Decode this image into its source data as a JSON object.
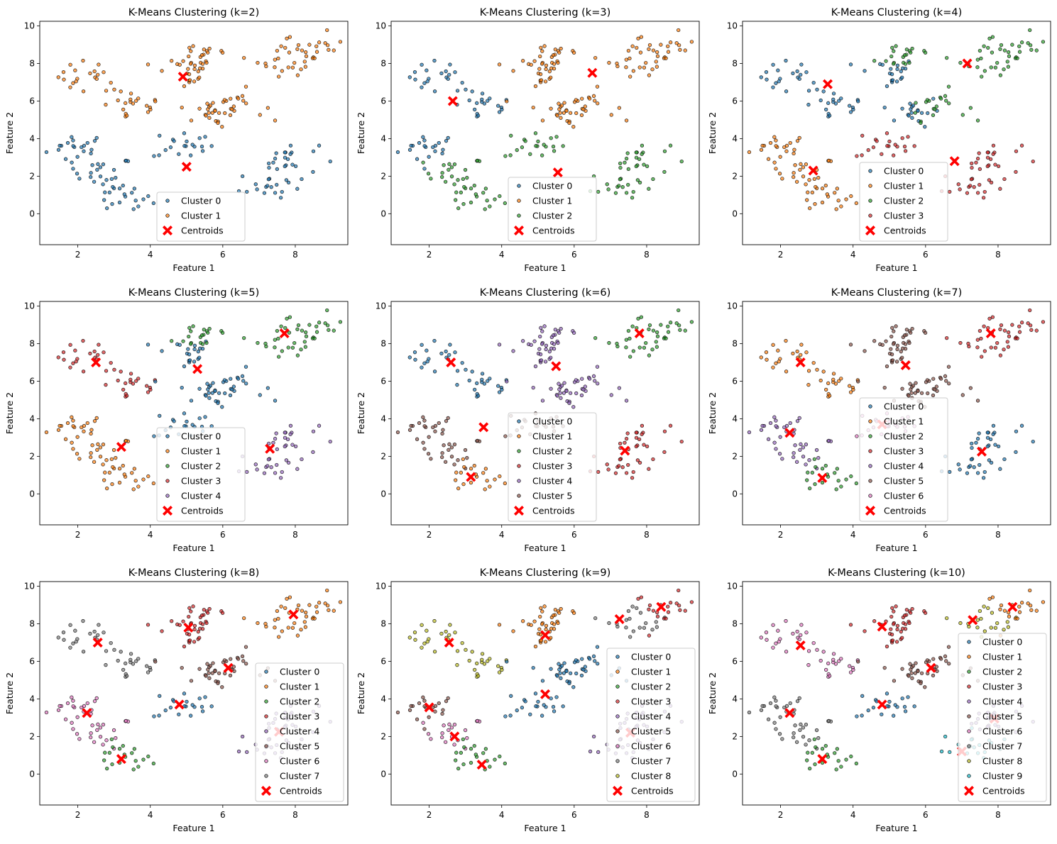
{
  "figure": {
    "xlabel": "Feature 1",
    "ylabel": "Feature 2",
    "xticks": [
      "2",
      "4",
      "6",
      "8"
    ],
    "yticks": [
      "0",
      "2",
      "4",
      "6",
      "8",
      "10"
    ],
    "xlim": [
      0.95,
      9.45
    ],
    "ylim": [
      -1.65,
      10.25
    ],
    "palette": [
      "#1f77b4",
      "#ff7f0e",
      "#2ca02c",
      "#d62728",
      "#9467bd",
      "#8c564b",
      "#e377c2",
      "#7f7f7f",
      "#bcbd22",
      "#17becf"
    ],
    "centroid_color": "#ff0000",
    "centroids_label": "Centroids",
    "blob_centers": [
      [
        2.0,
        3.5
      ],
      [
        2.3,
        7.3
      ],
      [
        2.7,
        2.2
      ],
      [
        3.2,
        0.8
      ],
      [
        3.5,
        5.7
      ],
      [
        4.9,
        3.7
      ],
      [
        4.9,
        7.5
      ],
      [
        5.5,
        8.5
      ],
      [
        5.6,
        5.5
      ],
      [
        6.3,
        5.8
      ],
      [
        7.3,
        1.5
      ],
      [
        7.8,
        2.9
      ],
      [
        7.8,
        8.2
      ],
      [
        8.5,
        8.8
      ]
    ]
  },
  "chart_data": [
    {
      "type": "scatter",
      "k": 2,
      "title": "K-Means Clustering (k=2)",
      "legend": [
        "Cluster 0",
        "Cluster 1"
      ],
      "legend_position": "lower center",
      "centroids": [
        [
          5.0,
          2.5
        ],
        [
          4.9,
          7.3
        ]
      ],
      "blob_labels": [
        0,
        1,
        0,
        0,
        1,
        0,
        1,
        1,
        1,
        1,
        0,
        0,
        1,
        1
      ]
    },
    {
      "type": "scatter",
      "k": 3,
      "title": "K-Means Clustering (k=3)",
      "legend": [
        "Cluster 0",
        "Cluster 1",
        "Cluster 2"
      ],
      "legend_position": "lower center",
      "centroids": [
        [
          2.65,
          6.0
        ],
        [
          6.5,
          7.5
        ],
        [
          5.55,
          2.2
        ]
      ],
      "blob_labels": [
        0,
        0,
        2,
        2,
        0,
        2,
        1,
        1,
        1,
        1,
        2,
        2,
        1,
        1
      ]
    },
    {
      "type": "scatter",
      "k": 4,
      "title": "K-Means Clustering (k=4)",
      "legend": [
        "Cluster 0",
        "Cluster 1",
        "Cluster 2",
        "Cluster 3"
      ],
      "legend_position": "lower center",
      "centroids": [
        [
          3.3,
          6.9
        ],
        [
          2.9,
          2.3
        ],
        [
          7.15,
          8.0
        ],
        [
          6.8,
          2.8
        ]
      ],
      "blob_labels": [
        1,
        0,
        1,
        1,
        0,
        3,
        0,
        2,
        0,
        2,
        3,
        3,
        2,
        2
      ]
    },
    {
      "type": "scatter",
      "k": 5,
      "title": "K-Means Clustering (k=5)",
      "legend": [
        "Cluster 0",
        "Cluster 1",
        "Cluster 2",
        "Cluster 3",
        "Cluster 4"
      ],
      "legend_position": "lower center",
      "centroids": [
        [
          5.3,
          6.65
        ],
        [
          3.2,
          2.5
        ],
        [
          7.7,
          8.55
        ],
        [
          2.5,
          7.0
        ],
        [
          7.3,
          2.4
        ]
      ],
      "blob_labels": [
        1,
        3,
        1,
        1,
        3,
        0,
        0,
        2,
        0,
        0,
        4,
        4,
        2,
        2
      ]
    },
    {
      "type": "scatter",
      "k": 6,
      "title": "K-Means Clustering (k=6)",
      "legend": [
        "Cluster 0",
        "Cluster 1",
        "Cluster 2",
        "Cluster 3",
        "Cluster 4",
        "Cluster 5"
      ],
      "legend_position": "lower center",
      "centroids": [
        [
          2.6,
          7.0
        ],
        [
          3.15,
          0.9
        ],
        [
          7.8,
          8.55
        ],
        [
          7.4,
          2.3
        ],
        [
          5.5,
          6.8
        ],
        [
          3.5,
          3.55
        ]
      ],
      "blob_labels": [
        5,
        0,
        5,
        1,
        0,
        5,
        4,
        4,
        4,
        4,
        3,
        3,
        2,
        2
      ]
    },
    {
      "type": "scatter",
      "k": 7,
      "title": "K-Means Clustering (k=7)",
      "legend": [
        "Cluster 0",
        "Cluster 1",
        "Cluster 2",
        "Cluster 3",
        "Cluster 4",
        "Cluster 5",
        "Cluster 6"
      ],
      "legend_position": "lower center",
      "centroids": [
        [
          7.55,
          2.25
        ],
        [
          2.55,
          7.0
        ],
        [
          3.15,
          0.85
        ],
        [
          7.8,
          8.55
        ],
        [
          2.25,
          3.25
        ],
        [
          5.45,
          6.85
        ],
        [
          4.8,
          3.7
        ]
      ],
      "blob_labels": [
        4,
        1,
        4,
        2,
        1,
        6,
        5,
        5,
        5,
        5,
        0,
        0,
        3,
        3
      ]
    },
    {
      "type": "scatter",
      "k": 8,
      "title": "K-Means Clustering (k=8)",
      "legend": [
        "Cluster 0",
        "Cluster 1",
        "Cluster 2",
        "Cluster 3",
        "Cluster 4",
        "Cluster 5",
        "Cluster 6",
        "Cluster 7"
      ],
      "legend_position": "lower right",
      "centroids": [
        [
          4.8,
          3.7
        ],
        [
          7.95,
          8.5
        ],
        [
          3.2,
          0.8
        ],
        [
          5.05,
          7.8
        ],
        [
          7.55,
          2.25
        ],
        [
          6.15,
          5.65
        ],
        [
          2.25,
          3.25
        ],
        [
          2.55,
          7.0
        ]
      ],
      "blob_labels": [
        6,
        7,
        6,
        2,
        7,
        0,
        3,
        3,
        5,
        5,
        4,
        4,
        1,
        1
      ]
    },
    {
      "type": "scatter",
      "k": 9,
      "title": "K-Means Clustering (k=9)",
      "legend": [
        "Cluster 0",
        "Cluster 1",
        "Cluster 2",
        "Cluster 3",
        "Cluster 4",
        "Cluster 5",
        "Cluster 6",
        "Cluster 7",
        "Cluster 8"
      ],
      "legend_position": "lower right",
      "centroids": [
        [
          5.2,
          4.25
        ],
        [
          5.2,
          7.4
        ],
        [
          3.45,
          0.5
        ],
        [
          8.4,
          8.9
        ],
        [
          7.55,
          2.2
        ],
        [
          2.0,
          3.55
        ],
        [
          2.7,
          2.0
        ],
        [
          7.25,
          8.25
        ],
        [
          2.55,
          7.0
        ]
      ],
      "blob_labels": [
        5,
        8,
        6,
        2,
        8,
        0,
        1,
        1,
        0,
        0,
        4,
        4,
        7,
        3
      ]
    },
    {
      "type": "scatter",
      "k": 10,
      "title": "K-Means Clustering (k=10)",
      "legend": [
        "Cluster 0",
        "Cluster 1",
        "Cluster 2",
        "Cluster 3",
        "Cluster 4",
        "Cluster 5",
        "Cluster 6",
        "Cluster 7",
        "Cluster 8",
        "Cluster 9"
      ],
      "legend_position": "lower right",
      "centroids": [
        [
          4.8,
          3.7
        ],
        [
          8.4,
          8.9
        ],
        [
          3.15,
          0.8
        ],
        [
          4.8,
          7.85
        ],
        [
          7.9,
          2.95
        ],
        [
          6.15,
          5.65
        ],
        [
          2.55,
          6.85
        ],
        [
          2.25,
          3.25
        ],
        [
          7.3,
          8.2
        ],
        [
          7.0,
          1.2
        ]
      ],
      "blob_labels": [
        7,
        6,
        7,
        2,
        6,
        0,
        3,
        3,
        5,
        5,
        9,
        4,
        8,
        1
      ]
    }
  ]
}
